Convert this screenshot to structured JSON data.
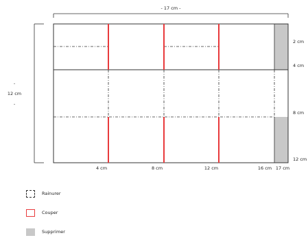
{
  "dimensions": {
    "width_label": "- 17 cm -",
    "height_label": "12 cm",
    "height_tick_top": "-",
    "height_tick_bottom": "-"
  },
  "right_labels": [
    "2 cm",
    "4 cm",
    "8 cm",
    "12 cm"
  ],
  "bottom_labels": [
    "4 cm",
    "8 cm",
    "12 cm",
    "16 cm",
    "17 cm"
  ],
  "legend": [
    {
      "key": "fold",
      "label": "Rainurer"
    },
    {
      "key": "cut",
      "label": "Couper"
    },
    {
      "key": "remove",
      "label": "Supprimer"
    }
  ],
  "colors": {
    "cut": "#e8393b",
    "remove": "#c8c8c8",
    "line": "#333333"
  }
}
